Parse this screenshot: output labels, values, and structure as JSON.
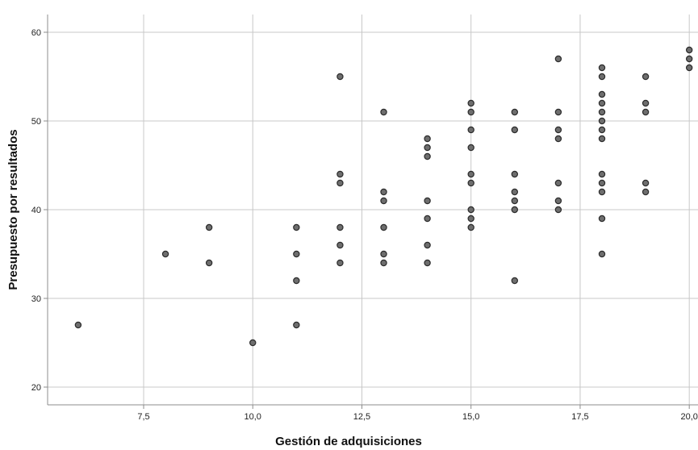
{
  "chart_data": {
    "type": "scatter",
    "title": "",
    "xlabel": "Gestión de adquisiciones",
    "ylabel": "Presupuesto por resultados",
    "xlim": [
      5.3,
      20.2
    ],
    "ylim": [
      18,
      62
    ],
    "x_ticks": [
      7.5,
      10.0,
      12.5,
      15.0,
      17.5,
      20.0
    ],
    "x_tick_labels": [
      "7,5",
      "10,0",
      "12,5",
      "15,0",
      "17,5",
      "20,0"
    ],
    "y_ticks": [
      20,
      30,
      40,
      50,
      60
    ],
    "y_tick_labels": [
      "20",
      "30",
      "40",
      "50",
      "60"
    ],
    "grid": true,
    "legend": "none",
    "marker_fill": "#6e6e6e",
    "marker_edge": "#2b2b2b",
    "grid_color": "#c8c8c8",
    "points": [
      {
        "x": 6,
        "y": 27
      },
      {
        "x": 8,
        "y": 35
      },
      {
        "x": 9,
        "y": 38
      },
      {
        "x": 9,
        "y": 34
      },
      {
        "x": 10,
        "y": 25
      },
      {
        "x": 11,
        "y": 38
      },
      {
        "x": 11,
        "y": 35
      },
      {
        "x": 11,
        "y": 32
      },
      {
        "x": 11,
        "y": 27
      },
      {
        "x": 12,
        "y": 55
      },
      {
        "x": 12,
        "y": 44
      },
      {
        "x": 12,
        "y": 43
      },
      {
        "x": 12,
        "y": 38
      },
      {
        "x": 12,
        "y": 36
      },
      {
        "x": 12,
        "y": 34
      },
      {
        "x": 13,
        "y": 51
      },
      {
        "x": 13,
        "y": 42
      },
      {
        "x": 13,
        "y": 41
      },
      {
        "x": 13,
        "y": 38
      },
      {
        "x": 13,
        "y": 35
      },
      {
        "x": 13,
        "y": 34
      },
      {
        "x": 14,
        "y": 48
      },
      {
        "x": 14,
        "y": 47
      },
      {
        "x": 14,
        "y": 46
      },
      {
        "x": 14,
        "y": 41
      },
      {
        "x": 14,
        "y": 39
      },
      {
        "x": 14,
        "y": 36
      },
      {
        "x": 14,
        "y": 34
      },
      {
        "x": 15,
        "y": 52
      },
      {
        "x": 15,
        "y": 51
      },
      {
        "x": 15,
        "y": 49
      },
      {
        "x": 15,
        "y": 47
      },
      {
        "x": 15,
        "y": 44
      },
      {
        "x": 15,
        "y": 43
      },
      {
        "x": 15,
        "y": 40
      },
      {
        "x": 15,
        "y": 39
      },
      {
        "x": 15,
        "y": 38
      },
      {
        "x": 16,
        "y": 51
      },
      {
        "x": 16,
        "y": 49
      },
      {
        "x": 16,
        "y": 44
      },
      {
        "x": 16,
        "y": 42
      },
      {
        "x": 16,
        "y": 41
      },
      {
        "x": 16,
        "y": 40
      },
      {
        "x": 16,
        "y": 32
      },
      {
        "x": 17,
        "y": 57
      },
      {
        "x": 17,
        "y": 51
      },
      {
        "x": 17,
        "y": 49
      },
      {
        "x": 17,
        "y": 48
      },
      {
        "x": 17,
        "y": 43
      },
      {
        "x": 17,
        "y": 41
      },
      {
        "x": 17,
        "y": 40
      },
      {
        "x": 18,
        "y": 56
      },
      {
        "x": 18,
        "y": 55
      },
      {
        "x": 18,
        "y": 53
      },
      {
        "x": 18,
        "y": 52
      },
      {
        "x": 18,
        "y": 51
      },
      {
        "x": 18,
        "y": 50
      },
      {
        "x": 18,
        "y": 49
      },
      {
        "x": 18,
        "y": 48
      },
      {
        "x": 18,
        "y": 44
      },
      {
        "x": 18,
        "y": 43
      },
      {
        "x": 18,
        "y": 42
      },
      {
        "x": 18,
        "y": 39
      },
      {
        "x": 18,
        "y": 35
      },
      {
        "x": 19,
        "y": 55
      },
      {
        "x": 19,
        "y": 52
      },
      {
        "x": 19,
        "y": 51
      },
      {
        "x": 19,
        "y": 43
      },
      {
        "x": 19,
        "y": 42
      },
      {
        "x": 20,
        "y": 58
      },
      {
        "x": 20,
        "y": 57
      },
      {
        "x": 20,
        "y": 56
      }
    ]
  }
}
